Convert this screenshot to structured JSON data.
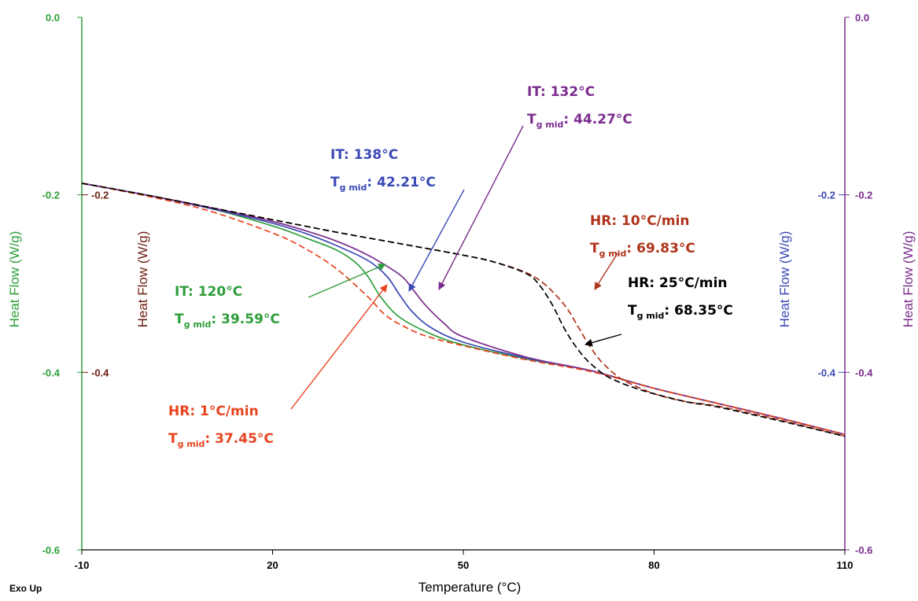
{
  "chart_data": {
    "type": "line",
    "xlabel": "Temperature (°C)",
    "ylabel_left_outer": "Heat Flow (W/g)",
    "ylabel_left_inner": "Heat Flow (W/g)",
    "ylabel_right_inner": "Heat Flow (W/g)",
    "ylabel_right_outer": "Heat Flow (W/g)",
    "corner_label": "Exo Up",
    "xlim": [
      -10,
      110
    ],
    "ylim": [
      -0.6,
      0.0
    ],
    "x_ticks": [
      "-10",
      "20",
      "50",
      "80",
      "110"
    ],
    "y_ticks_left_outer": [
      "0.0",
      "-0.2",
      "-0.4",
      "-0.6"
    ],
    "y_ticks_left_inner": [
      "-0.2",
      "-0.4"
    ],
    "y_ticks_right_inner": [
      "-0.2",
      "-0.4"
    ],
    "y_ticks_right_outer": [
      "0.0",
      "-0.2",
      "-0.4",
      "-0.6"
    ],
    "grid": false,
    "colors": {
      "green": "#2e9e3a",
      "blue": "#3b49b6",
      "purple": "#7b2d8e",
      "red": "#e8431f",
      "darkred": "#b0331a",
      "black": "#000000",
      "left_inner_axis": "#6b1f10"
    },
    "series": [
      {
        "color": "green",
        "dash": false,
        "x": [
          -10,
          0,
          10,
          20,
          25,
          30,
          33,
          35,
          37,
          40,
          45,
          50,
          60,
          70,
          80,
          90,
          100,
          110
        ],
        "y": [
          -0.187,
          -0.2,
          -0.215,
          -0.235,
          -0.248,
          -0.262,
          -0.276,
          -0.292,
          -0.315,
          -0.338,
          -0.357,
          -0.369,
          -0.385,
          -0.398,
          -0.418,
          -0.435,
          -0.452,
          -0.47
        ]
      },
      {
        "color": "blue",
        "dash": false,
        "x": [
          -10,
          0,
          10,
          20,
          25,
          30,
          35,
          38,
          40,
          42,
          45,
          50,
          60,
          70,
          80,
          90,
          100,
          110
        ],
        "y": [
          -0.187,
          -0.2,
          -0.215,
          -0.232,
          -0.243,
          -0.257,
          -0.274,
          -0.292,
          -0.313,
          -0.332,
          -0.35,
          -0.366,
          -0.384,
          -0.398,
          -0.418,
          -0.435,
          -0.452,
          -0.47
        ]
      },
      {
        "color": "purple",
        "dash": false,
        "x": [
          -10,
          0,
          10,
          20,
          25,
          30,
          35,
          40,
          42,
          44,
          47,
          50,
          60,
          70,
          80,
          90,
          100,
          110
        ],
        "y": [
          -0.187,
          -0.2,
          -0.214,
          -0.23,
          -0.24,
          -0.252,
          -0.268,
          -0.29,
          -0.306,
          -0.324,
          -0.345,
          -0.36,
          -0.383,
          -0.398,
          -0.418,
          -0.435,
          -0.452,
          -0.47
        ]
      },
      {
        "color": "red",
        "dash": true,
        "x": [
          -10,
          0,
          10,
          20,
          25,
          30,
          35,
          38,
          42,
          45,
          50,
          60,
          70,
          80,
          90,
          100,
          110
        ],
        "y": [
          -0.187,
          -0.201,
          -0.218,
          -0.243,
          -0.26,
          -0.283,
          -0.315,
          -0.337,
          -0.353,
          -0.361,
          -0.37,
          -0.386,
          -0.399,
          -0.418,
          -0.435,
          -0.452,
          -0.47
        ]
      },
      {
        "color": "darkred",
        "dash": true,
        "x": [
          -10,
          0,
          10,
          20,
          30,
          40,
          50,
          55,
          60,
          63,
          66,
          68,
          70,
          72,
          75,
          80,
          85,
          90,
          100,
          110
        ],
        "y": [
          -0.187,
          -0.2,
          -0.214,
          -0.228,
          -0.242,
          -0.255,
          -0.268,
          -0.276,
          -0.288,
          -0.302,
          -0.325,
          -0.348,
          -0.372,
          -0.39,
          -0.408,
          -0.424,
          -0.433,
          -0.438,
          -0.454,
          -0.472
        ]
      },
      {
        "color": "black",
        "dash": true,
        "x": [
          -10,
          0,
          10,
          20,
          30,
          40,
          50,
          55,
          60,
          62,
          64,
          66,
          68,
          70,
          73,
          78,
          85,
          90,
          100,
          110
        ],
        "y": [
          -0.187,
          -0.2,
          -0.214,
          -0.228,
          -0.242,
          -0.255,
          -0.268,
          -0.276,
          -0.289,
          -0.302,
          -0.324,
          -0.352,
          -0.374,
          -0.39,
          -0.406,
          -0.42,
          -0.433,
          -0.439,
          -0.455,
          -0.472
        ]
      }
    ],
    "annotations": [
      {
        "id": "it132",
        "line1": "IT: 132°C",
        "line2_sub": "g mid",
        "line2_rest": ": 44.27°C",
        "color": "purple"
      },
      {
        "id": "it138",
        "line1": "IT: 138°C",
        "line2_sub": "g mid",
        "line2_rest": ": 42.21°C",
        "color": "blue"
      },
      {
        "id": "hr10",
        "line1": "HR: 10°C/min",
        "line2_sub": "g mid",
        "line2_rest": ": 69.83°C",
        "color": "darkred"
      },
      {
        "id": "hr25",
        "line1": "HR: 25°C/min",
        "line2_sub": "g mid",
        "line2_rest": ": 68.35°C",
        "color": "black"
      },
      {
        "id": "it120",
        "line1": "IT: 120°C",
        "line2_sub": "g mid",
        "line2_rest": ": 39.59°C",
        "color": "green"
      },
      {
        "id": "hr1",
        "line1": "HR: 1°C/min",
        "line2_sub": "g mid",
        "line2_rest": ": 37.45°C",
        "color": "red"
      }
    ]
  }
}
